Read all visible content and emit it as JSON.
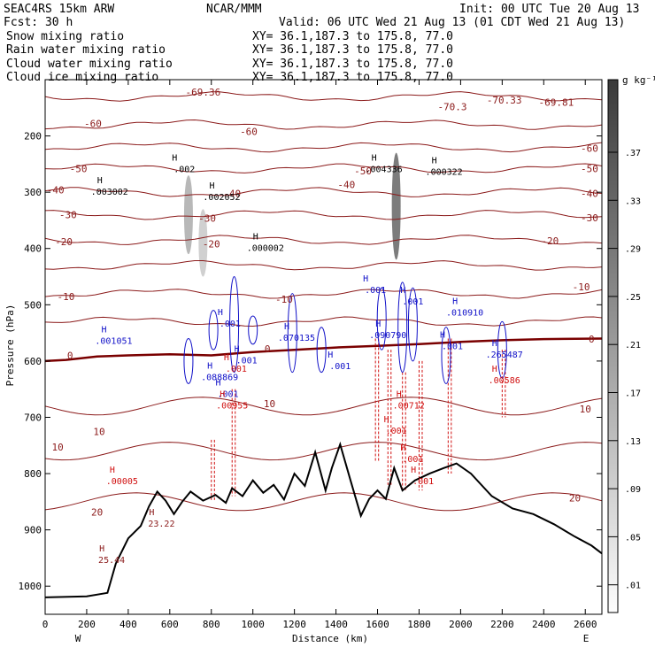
{
  "header": {
    "model": "SEAC4RS 15km ARW",
    "forecast": "Fcst:    30 h",
    "center": "NCAR/MMM",
    "init": "Init: 00 UTC Tue 20 Aug 13",
    "valid": "Valid: 06 UTC Wed 21 Aug 13 (01 CDT Wed 21 Aug 13)"
  },
  "legend": [
    {
      "label": "Snow mixing ratio",
      "xy": "XY=  36.1,187.3 to 175.8, 77.0",
      "color": "#000000"
    },
    {
      "label": "Rain water mixing ratio",
      "xy": "XY=  36.1,187.3 to 175.8, 77.0",
      "color": "#d01010"
    },
    {
      "label": "Cloud water mixing ratio",
      "xy": "XY=  36.1,187.3 to 175.8, 77.0",
      "color": "#1010c8"
    },
    {
      "label": "Cloud ice mixing ratio",
      "xy": "XY=  36.1,187.3 to 175.8, 77.0",
      "color": "#000000"
    }
  ],
  "colorbar": {
    "unit": "g kg⁻¹",
    "labels": [
      ".37",
      ".33",
      ".29",
      ".25",
      ".21",
      ".17",
      ".13",
      ".09",
      ".05",
      ".01"
    ]
  },
  "chart_data": {
    "type": "cross-section",
    "xlabel": "Distance (km)",
    "ylabel": "Pressure (hPa)",
    "xlim": [
      0,
      2680
    ],
    "ylim": [
      1050,
      100
    ],
    "x_ticks": [
      "0",
      "200",
      "400",
      "600",
      "800",
      "1000",
      "1200",
      "1400",
      "1600",
      "1800",
      "2000",
      "2200",
      "2400",
      "2600"
    ],
    "y_ticks": [
      "200",
      "300",
      "400",
      "500",
      "600",
      "700",
      "800",
      "900",
      "1000"
    ],
    "y_values": [
      200,
      300,
      400,
      500,
      600,
      700,
      800,
      900,
      1000
    ],
    "orientation": {
      "left": "W",
      "right": "E"
    },
    "temperature_isotherms": {
      "color": "#8b1a1a",
      "levels": [
        -70,
        -60,
        -50,
        -40,
        -30,
        -20,
        -10,
        0,
        10,
        20
      ],
      "labels": [
        {
          "text": "-70.3",
          "x": 1960,
          "p": 148
        },
        {
          "text": "-70.33",
          "x": 2210,
          "p": 136
        },
        {
          "text": "-69.81",
          "x": 2460,
          "p": 140
        },
        {
          "text": "-69.36",
          "x": 760,
          "p": 122
        },
        {
          "text": "-60",
          "x": 230,
          "p": 178
        },
        {
          "text": "-60",
          "x": 980,
          "p": 192
        },
        {
          "text": "-60",
          "x": 2620,
          "p": 222
        },
        {
          "text": "-50",
          "x": 160,
          "p": 258
        },
        {
          "text": "-50",
          "x": 1530,
          "p": 262
        },
        {
          "text": "-50",
          "x": 2620,
          "p": 258
        },
        {
          "text": "-40",
          "x": 50,
          "p": 296
        },
        {
          "text": "-40",
          "x": 900,
          "p": 302
        },
        {
          "text": "-40",
          "x": 1450,
          "p": 286
        },
        {
          "text": "-40",
          "x": 2620,
          "p": 302
        },
        {
          "text": "-30",
          "x": 110,
          "p": 340
        },
        {
          "text": "-30",
          "x": 780,
          "p": 346
        },
        {
          "text": "-30",
          "x": 2620,
          "p": 345
        },
        {
          "text": "-20",
          "x": 90,
          "p": 388
        },
        {
          "text": "-20",
          "x": 800,
          "p": 392
        },
        {
          "text": "-20",
          "x": 2430,
          "p": 386
        },
        {
          "text": "-10",
          "x": 100,
          "p": 485
        },
        {
          "text": "-10",
          "x": 1150,
          "p": 490
        },
        {
          "text": "-10",
          "x": 2580,
          "p": 468
        },
        {
          "text": "0",
          "x": 120,
          "p": 590
        },
        {
          "text": "0",
          "x": 1070,
          "p": 578
        },
        {
          "text": "0",
          "x": 2630,
          "p": 561
        },
        {
          "text": "10",
          "x": 1080,
          "p": 676
        },
        {
          "text": "10",
          "x": 2600,
          "p": 685
        },
        {
          "text": "10",
          "x": 260,
          "p": 725
        },
        {
          "text": "10",
          "x": 60,
          "p": 753
        },
        {
          "text": "20",
          "x": 250,
          "p": 868
        },
        {
          "text": "20",
          "x": 2550,
          "p": 843
        }
      ],
      "reference_lines_p": [
        130,
        180,
        220,
        258,
        300,
        340,
        385,
        430,
        480,
        530
      ]
    },
    "freezing_level": [
      {
        "x": 0,
        "p": 600
      },
      {
        "x": 100,
        "p": 598
      },
      {
        "x": 250,
        "p": 592
      },
      {
        "x": 400,
        "p": 590
      },
      {
        "x": 600,
        "p": 588
      },
      {
        "x": 800,
        "p": 590
      },
      {
        "x": 1000,
        "p": 584
      },
      {
        "x": 1200,
        "p": 580
      },
      {
        "x": 1400,
        "p": 576
      },
      {
        "x": 1600,
        "p": 573
      },
      {
        "x": 1800,
        "p": 570
      },
      {
        "x": 2000,
        "p": 566
      },
      {
        "x": 2200,
        "p": 563
      },
      {
        "x": 2400,
        "p": 561
      },
      {
        "x": 2680,
        "p": 560
      }
    ],
    "terrain": [
      {
        "x": 0,
        "p": 1020
      },
      {
        "x": 200,
        "p": 1018
      },
      {
        "x": 300,
        "p": 1012
      },
      {
        "x": 340,
        "p": 960
      },
      {
        "x": 400,
        "p": 915
      },
      {
        "x": 460,
        "p": 893
      },
      {
        "x": 500,
        "p": 858
      },
      {
        "x": 540,
        "p": 832
      },
      {
        "x": 580,
        "p": 848
      },
      {
        "x": 620,
        "p": 872
      },
      {
        "x": 660,
        "p": 850
      },
      {
        "x": 700,
        "p": 832
      },
      {
        "x": 760,
        "p": 848
      },
      {
        "x": 820,
        "p": 838
      },
      {
        "x": 870,
        "p": 852
      },
      {
        "x": 900,
        "p": 826
      },
      {
        "x": 950,
        "p": 840
      },
      {
        "x": 1000,
        "p": 812
      },
      {
        "x": 1050,
        "p": 834
      },
      {
        "x": 1100,
        "p": 820
      },
      {
        "x": 1150,
        "p": 846
      },
      {
        "x": 1200,
        "p": 800
      },
      {
        "x": 1250,
        "p": 822
      },
      {
        "x": 1300,
        "p": 762
      },
      {
        "x": 1350,
        "p": 830
      },
      {
        "x": 1380,
        "p": 790
      },
      {
        "x": 1420,
        "p": 748
      },
      {
        "x": 1470,
        "p": 812
      },
      {
        "x": 1520,
        "p": 875
      },
      {
        "x": 1560,
        "p": 845
      },
      {
        "x": 1600,
        "p": 830
      },
      {
        "x": 1640,
        "p": 845
      },
      {
        "x": 1680,
        "p": 790
      },
      {
        "x": 1720,
        "p": 830
      },
      {
        "x": 1780,
        "p": 812
      },
      {
        "x": 1850,
        "p": 800
      },
      {
        "x": 1920,
        "p": 790
      },
      {
        "x": 1980,
        "p": 782
      },
      {
        "x": 2050,
        "p": 800
      },
      {
        "x": 2150,
        "p": 840
      },
      {
        "x": 2250,
        "p": 862
      },
      {
        "x": 2350,
        "p": 872
      },
      {
        "x": 2450,
        "p": 890
      },
      {
        "x": 2550,
        "p": 912
      },
      {
        "x": 2630,
        "p": 928
      },
      {
        "x": 2680,
        "p": 942
      }
    ],
    "cloud_ice_shading": [
      {
        "x": 690,
        "p_top": 270,
        "p_bottom": 410,
        "max": 0.12
      },
      {
        "x": 760,
        "p_top": 330,
        "p_bottom": 450,
        "max": 0.08
      },
      {
        "x": 1690,
        "p_top": 230,
        "p_bottom": 420,
        "max": 0.22
      }
    ],
    "maxima_labels": [
      {
        "text": ".003002",
        "x": 310,
        "p": 290,
        "color": "#000000"
      },
      {
        "text": ".002",
        "x": 670,
        "p": 250,
        "color": "#000000"
      },
      {
        "text": ".002052",
        "x": 850,
        "p": 300,
        "color": "#000000"
      },
      {
        "text": ".000002",
        "x": 1060,
        "p": 390,
        "color": "#000000"
      },
      {
        "text": ".004336",
        "x": 1630,
        "p": 250,
        "color": "#000000"
      },
      {
        "text": ".000322",
        "x": 1920,
        "p": 255,
        "color": "#000000"
      },
      {
        "text": ".001051",
        "x": 330,
        "p": 555,
        "color": "#1010c8"
      },
      {
        "text": ".001",
        "x": 890,
        "p": 525,
        "color": "#1010c8"
      },
      {
        "text": ".001",
        "x": 970,
        "p": 590,
        "color": "#1010c8"
      },
      {
        "text": ".088869",
        "x": 840,
        "p": 620,
        "color": "#1010c8"
      },
      {
        "text": ".001",
        "x": 880,
        "p": 650,
        "color": "#1010c8"
      },
      {
        "text": ".070135",
        "x": 1210,
        "p": 550,
        "color": "#1010c8"
      },
      {
        "text": ".001",
        "x": 1420,
        "p": 600,
        "color": "#1010c8"
      },
      {
        "text": ".001",
        "x": 1590,
        "p": 465,
        "color": "#1010c8"
      },
      {
        "text": ".090790",
        "x": 1650,
        "p": 545,
        "color": "#1010c8"
      },
      {
        "text": ".001",
        "x": 1770,
        "p": 485,
        "color": "#1010c8"
      },
      {
        "text": ".010910",
        "x": 2020,
        "p": 505,
        "color": "#1010c8"
      },
      {
        "text": ".001",
        "x": 1960,
        "p": 565,
        "color": "#1010c8"
      },
      {
        "text": ".265487",
        "x": 2210,
        "p": 580,
        "color": "#1010c8"
      },
      {
        "text": ".001",
        "x": 920,
        "p": 605,
        "color": "#d01010"
      },
      {
        "text": ".00955",
        "x": 900,
        "p": 670,
        "color": "#d01010"
      },
      {
        "text": ".00712",
        "x": 1750,
        "p": 670,
        "color": "#d01010"
      },
      {
        "text": ".001",
        "x": 1690,
        "p": 715,
        "color": "#d01010"
      },
      {
        "text": ".001",
        "x": 1770,
        "p": 765,
        "color": "#d01010"
      },
      {
        "text": ".001",
        "x": 1820,
        "p": 805,
        "color": "#d01010"
      },
      {
        "text": ".00586",
        "x": 2210,
        "p": 625,
        "color": "#d01010"
      },
      {
        "text": ".00005",
        "x": 370,
        "p": 805,
        "color": "#d01010"
      },
      {
        "text": "23.22",
        "x": 560,
        "p": 880,
        "color": "#8b1a1a"
      },
      {
        "text": "25.44",
        "x": 320,
        "p": 945,
        "color": "#8b1a1a"
      }
    ]
  }
}
